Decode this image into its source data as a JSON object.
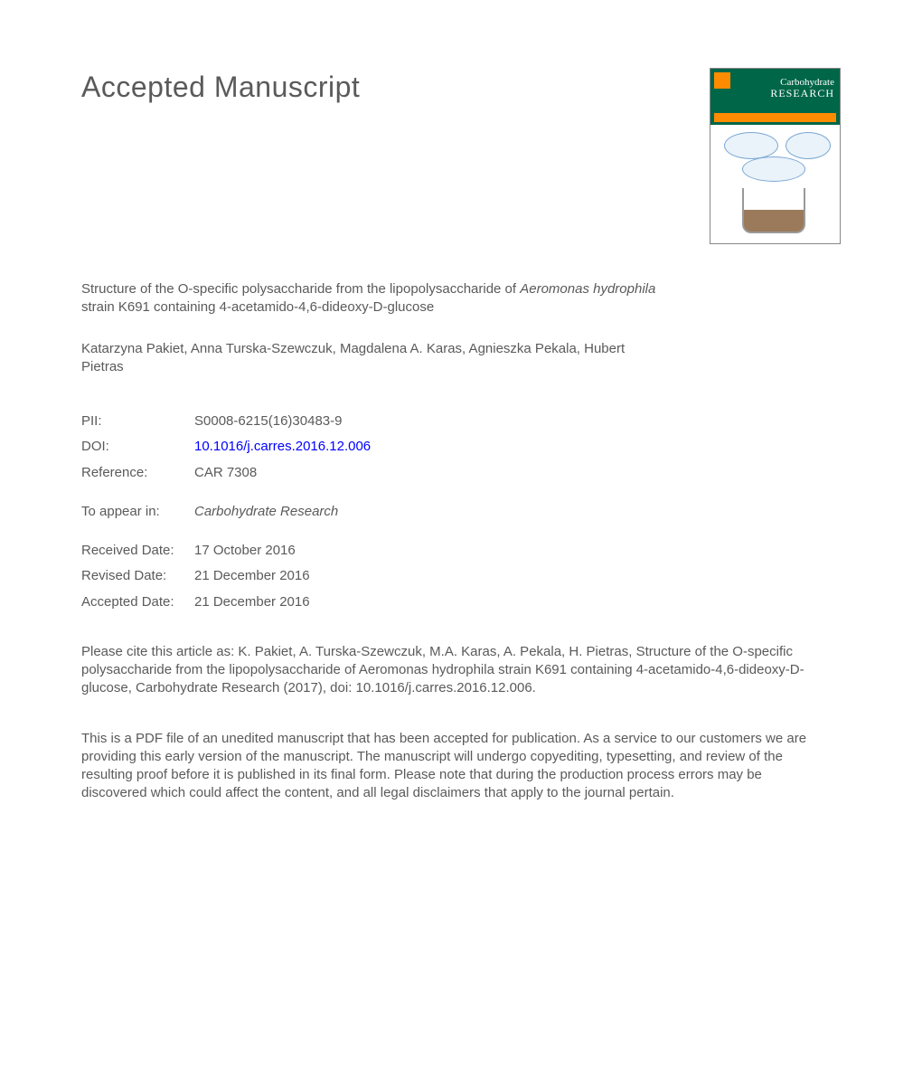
{
  "heading": "Accepted Manuscript",
  "cover": {
    "journal_name_l1": "Carbohydrate",
    "journal_name_l2": "RESEARCH",
    "bg_color": "#006648",
    "accent_color": "#ff8c00"
  },
  "title": {
    "part1": "Structure of the O-specific polysaccharide from the lipopolysaccharide of ",
    "italic1": "Aeromonas hydrophila",
    "part2": " strain K691 containing 4-acetamido-4,6-dideoxy-D-glucose"
  },
  "authors": "Katarzyna Pakiet, Anna Turska-Szewczuk, Magdalena A. Karas, Agnieszka Pekala, Hubert Pietras",
  "meta": {
    "pii_label": "PII:",
    "pii_value": "S0008-6215(16)30483-9",
    "doi_label": "DOI:",
    "doi_value": "10.1016/j.carres.2016.12.006",
    "ref_label": "Reference:",
    "ref_value": "CAR 7308",
    "appear_label": "To appear in:",
    "appear_value": "Carbohydrate Research",
    "received_label": "Received Date:",
    "received_value": "17 October 2016",
    "revised_label": "Revised Date:",
    "revised_value": "21 December 2016",
    "accepted_label": "Accepted Date:",
    "accepted_value": "21 December 2016"
  },
  "citation": {
    "part1": "Please cite this article as: K. Pakiet, A. Turska-Szewczuk, M.A. Karas, A. Pekala, H. Pietras, Structure of the O-specific polysaccharide from the lipopolysaccharide of ",
    "italic1": "Aeromonas hydrophila",
    "part2": " strain K691 containing 4-acetamido-4,6-dideoxy-D-glucose, ",
    "italic2": "Carbohydrate Research",
    "part3": " (2017), doi: 10.1016/j.carres.2016.12.006."
  },
  "disclaimer": "This is a PDF file of an unedited manuscript that has been accepted for publication. As a service to our customers we are providing this early version of the manuscript. The manuscript will undergo copyediting, typesetting, and review of the resulting proof before it is published in its final form. Please note that during the production process errors may be discovered which could affect the content, and all legal disclaimers that apply to the journal pertain."
}
